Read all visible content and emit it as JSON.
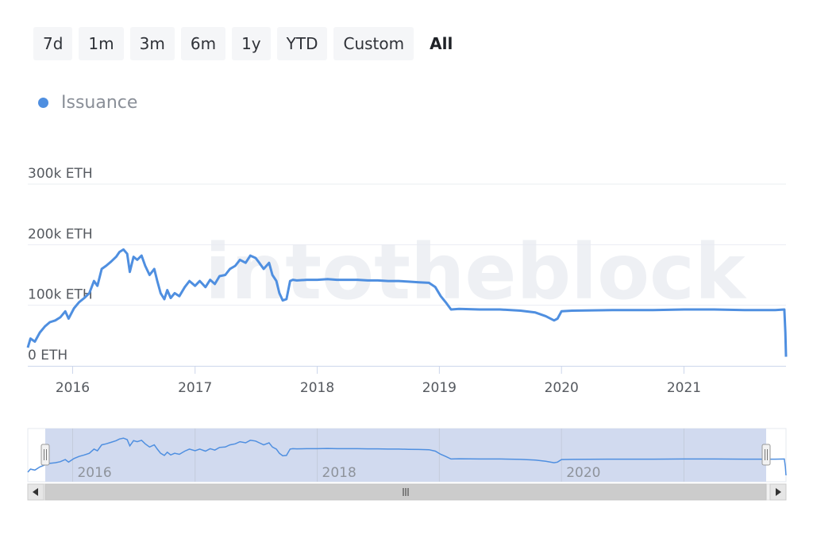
{
  "range_selector": {
    "buttons": [
      "7d",
      "1m",
      "3m",
      "6m",
      "1y",
      "YTD",
      "Custom",
      "All"
    ],
    "active": "All"
  },
  "watermark": "intotheblock",
  "colors": {
    "series": "#4f8fe0",
    "navigator_fill": "#cfd8ee",
    "grid": "#e9ecf2"
  },
  "chart_data": {
    "type": "line",
    "title": "",
    "legend": {
      "entries": [
        "Issuance"
      ],
      "placement": "top-left"
    },
    "y_ticks": [
      "0 ETH",
      "100k ETH",
      "200k ETH",
      "300k ETH"
    ],
    "ylim": [
      0,
      300000
    ],
    "x_ticks": [
      "2016",
      "2017",
      "2018",
      "2019",
      "2020",
      "2021"
    ],
    "xlim": [
      "2015-08-20",
      "2021-11-02"
    ],
    "navigator_ticks": [
      "2016",
      "2018",
      "2020"
    ],
    "series": [
      {
        "name": "Issuance",
        "points": [
          [
            "2015-08-20",
            30000
          ],
          [
            "2015-08-28",
            45000
          ],
          [
            "2015-09-10",
            40000
          ],
          [
            "2015-09-25",
            55000
          ],
          [
            "2015-10-10",
            65000
          ],
          [
            "2015-10-25",
            72000
          ],
          [
            "2015-11-10",
            75000
          ],
          [
            "2015-11-25",
            80000
          ],
          [
            "2015-12-10",
            90000
          ],
          [
            "2015-12-20",
            78000
          ],
          [
            "2016-01-05",
            95000
          ],
          [
            "2016-01-20",
            105000
          ],
          [
            "2016-02-05",
            112000
          ],
          [
            "2016-02-20",
            120000
          ],
          [
            "2016-03-05",
            140000
          ],
          [
            "2016-03-15",
            132000
          ],
          [
            "2016-03-28",
            160000
          ],
          [
            "2016-04-10",
            165000
          ],
          [
            "2016-04-25",
            172000
          ],
          [
            "2016-05-10",
            180000
          ],
          [
            "2016-05-20",
            188000
          ],
          [
            "2016-06-01",
            192000
          ],
          [
            "2016-06-12",
            185000
          ],
          [
            "2016-06-20",
            155000
          ],
          [
            "2016-07-01",
            180000
          ],
          [
            "2016-07-12",
            175000
          ],
          [
            "2016-07-25",
            182000
          ],
          [
            "2016-08-05",
            165000
          ],
          [
            "2016-08-18",
            150000
          ],
          [
            "2016-09-01",
            160000
          ],
          [
            "2016-09-10",
            140000
          ],
          [
            "2016-09-20",
            120000
          ],
          [
            "2016-10-01",
            110000
          ],
          [
            "2016-10-10",
            125000
          ],
          [
            "2016-10-20",
            112000
          ],
          [
            "2016-11-01",
            120000
          ],
          [
            "2016-11-15",
            115000
          ],
          [
            "2016-12-01",
            130000
          ],
          [
            "2016-12-15",
            140000
          ],
          [
            "2017-01-01",
            132000
          ],
          [
            "2017-01-15",
            140000
          ],
          [
            "2017-02-01",
            130000
          ],
          [
            "2017-02-15",
            142000
          ],
          [
            "2017-03-01",
            135000
          ],
          [
            "2017-03-15",
            148000
          ],
          [
            "2017-04-01",
            150000
          ],
          [
            "2017-04-15",
            160000
          ],
          [
            "2017-05-01",
            165000
          ],
          [
            "2017-05-15",
            175000
          ],
          [
            "2017-06-01",
            170000
          ],
          [
            "2017-06-15",
            182000
          ],
          [
            "2017-07-01",
            178000
          ],
          [
            "2017-07-12",
            170000
          ],
          [
            "2017-07-25",
            160000
          ],
          [
            "2017-08-10",
            170000
          ],
          [
            "2017-08-20",
            150000
          ],
          [
            "2017-09-01",
            140000
          ],
          [
            "2017-09-10",
            120000
          ],
          [
            "2017-09-20",
            108000
          ],
          [
            "2017-10-01",
            110000
          ],
          [
            "2017-10-12",
            140000
          ],
          [
            "2017-10-20",
            142000
          ],
          [
            "2017-11-01",
            141000
          ],
          [
            "2017-12-01",
            142000
          ],
          [
            "2018-01-01",
            142000
          ],
          [
            "2018-02-01",
            143000
          ],
          [
            "2018-03-01",
            142000
          ],
          [
            "2018-04-01",
            142000
          ],
          [
            "2018-05-01",
            142000
          ],
          [
            "2018-06-01",
            141000
          ],
          [
            "2018-07-01",
            141000
          ],
          [
            "2018-08-01",
            140000
          ],
          [
            "2018-09-01",
            140000
          ],
          [
            "2018-10-01",
            139000
          ],
          [
            "2018-11-01",
            138000
          ],
          [
            "2018-12-01",
            137000
          ],
          [
            "2018-12-20",
            130000
          ],
          [
            "2019-01-05",
            115000
          ],
          [
            "2019-01-20",
            105000
          ],
          [
            "2019-02-05",
            93000
          ],
          [
            "2019-03-01",
            94000
          ],
          [
            "2019-05-01",
            93000
          ],
          [
            "2019-07-01",
            93000
          ],
          [
            "2019-09-01",
            91000
          ],
          [
            "2019-10-15",
            88000
          ],
          [
            "2019-11-15",
            82000
          ],
          [
            "2019-12-10",
            75000
          ],
          [
            "2019-12-20",
            78000
          ],
          [
            "2020-01-01",
            90000
          ],
          [
            "2020-02-01",
            91000
          ],
          [
            "2020-06-01",
            92000
          ],
          [
            "2020-10-01",
            92000
          ],
          [
            "2021-01-01",
            93000
          ],
          [
            "2021-04-01",
            93000
          ],
          [
            "2021-07-01",
            92000
          ],
          [
            "2021-10-01",
            92000
          ],
          [
            "2021-10-28",
            93000
          ],
          [
            "2021-10-31",
            55000
          ],
          [
            "2021-11-02",
            15000
          ]
        ]
      }
    ]
  }
}
